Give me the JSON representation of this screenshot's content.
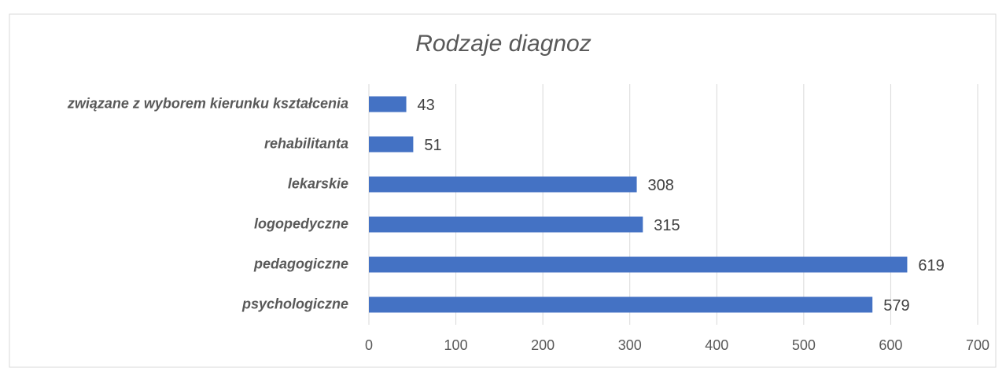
{
  "chart_data": {
    "type": "bar",
    "orientation": "horizontal",
    "title": "Rodzaje diagnoz",
    "categories": [
      "związane z wyborem kierunku kształcenia",
      "rehabilitanta",
      "lekarskie",
      "logopedyczne",
      "pedagogiczne",
      "psychologiczne"
    ],
    "values": [
      43,
      51,
      308,
      315,
      619,
      579
    ],
    "color": "#4472c4",
    "xlim": [
      0,
      700
    ],
    "xticks": [
      0,
      100,
      200,
      300,
      400,
      500,
      600,
      700
    ],
    "grid": true
  }
}
